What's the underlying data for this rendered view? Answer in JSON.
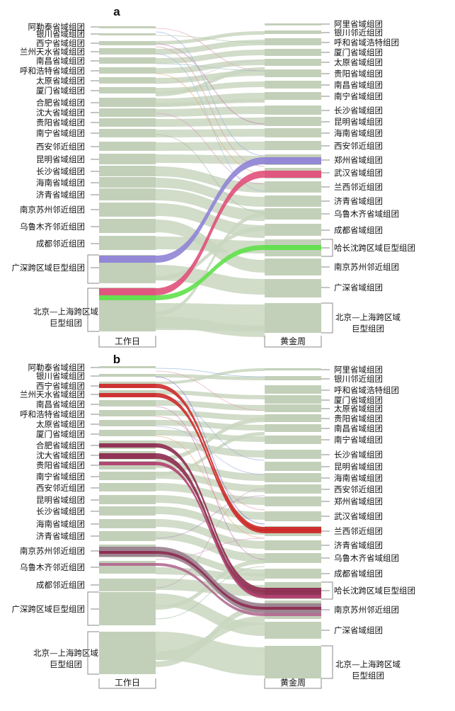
{
  "colors": {
    "neutral": "#c9d6c0",
    "neutral_node": "#c3d0b9",
    "bracket": "#8a8a8a",
    "purple": "#8f84d6",
    "pink": "#e0507a",
    "green": "#5fe04a",
    "red": "#cc2a2a",
    "maroon": "#8e2b50",
    "mauve": "#9a7f8e"
  },
  "left_nodes": [
    "阿勒泰省域组团",
    "银川省域组团",
    "西宁省域组团",
    "兰州天水省域组团",
    "南昌省域组团",
    "呼和浩特省域组团",
    "太原省域组团",
    "厦门省域组团",
    "合肥省域组团",
    "沈大省域组团",
    "贵阳省域组团",
    "南宁省域组团",
    "西安邻近组团",
    "昆明省域组团",
    "长沙省域组团",
    "海南省域组团",
    "济青省域组团",
    "南京苏州邻近组团",
    "乌鲁木齐邻近组团",
    "成都邻近组团",
    "广深跨区域巨型组团",
    "北京—上海跨区域",
    "巨型组团"
  ],
  "right_nodes_a": [
    "阿里省域组团",
    "银川邻近组团",
    "呼和省域浩特组团",
    "厦门省域组团",
    "太原省域组团",
    "贵阳省域组团",
    "南昌省域组团",
    "南宁省域组团",
    "长沙省域组团",
    "昆明省域组团",
    "海南省域组团",
    "西安邻近组团",
    "郑州省域组团",
    "武汉省域组团",
    "兰西邻近组团",
    "济青省域组团",
    "乌鲁木齐省域组团",
    "成都省域组团",
    "哈长沈跨区域巨型组团",
    "南京苏州邻近组团",
    "广深省域组团",
    "北京—上海跨区域",
    "巨型组团"
  ],
  "right_nodes_b": [
    "阿里省域组团",
    "银川邻近组团",
    "呼和省域浩特组团",
    "厦门省域组团",
    "太原省域组团",
    "贵阳省域组团",
    "南昌省域组团",
    "南宁省域组团",
    "长沙省域组团",
    "昆明省域组团",
    "海南省域组团",
    "西安邻近组团",
    "郑州省域组团",
    "武汉省域组团",
    "兰西邻近组团",
    "济青省域组团",
    "乌鲁木齐省域组团",
    "成都省域组团",
    "哈长沈跨区域巨型组团",
    "南京苏州邻近组团",
    "广深省域组团",
    "北京—上海跨区域",
    "巨型组团"
  ],
  "panels": [
    {
      "letter": "a",
      "left_axis": "工作日",
      "right_axis": "黄金周"
    },
    {
      "letter": "b",
      "left_axis": "工作日",
      "right_axis": "黄金周"
    }
  ]
}
